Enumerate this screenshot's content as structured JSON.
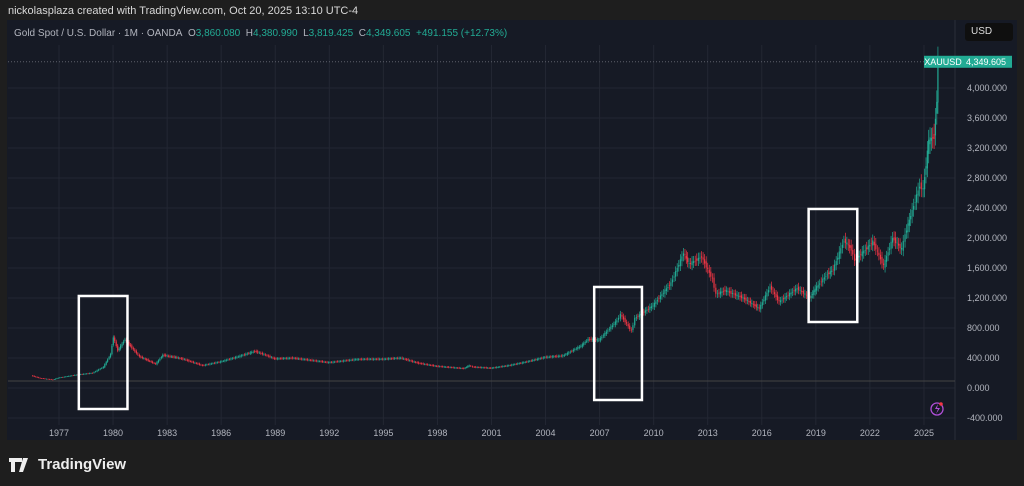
{
  "header": {
    "credit": "nickolasplaza created with TradingView.com, Oct 20, 2025 13:10 UTC-4",
    "symbol_desc": "Gold Spot / U.S. Dollar · 1M · OANDA",
    "o_label": "O",
    "o": "3,860.080",
    "h_label": "H",
    "h": "4,380.990",
    "l_label": "L",
    "l": "3,819.425",
    "c_label": "C",
    "c": "4,349.605",
    "change": "+491.155 (+12.73%)",
    "currency": "USD"
  },
  "branding": {
    "logo_text": "TradingView"
  },
  "colors": {
    "up": "#22ab94",
    "down": "#f23645",
    "background": "#161a25",
    "accent": "#22ab94"
  },
  "chart_data": {
    "type": "candlestick",
    "title": "Gold Spot / U.S. Dollar",
    "interval": "1M",
    "ylim": [
      -400,
      4400
    ],
    "xlim": [
      1974.8,
      2027.2
    ],
    "yticks": [
      "-400.000",
      "0.000",
      "400.000",
      "800.000",
      "1,200.000",
      "1,600.000",
      "2,000.000",
      "2,400.000",
      "2,800.000",
      "3,200.000",
      "3,600.000",
      "4,000.000"
    ],
    "ytick_values": [
      -400,
      0,
      400,
      800,
      1200,
      1600,
      2000,
      2400,
      2800,
      3200,
      3600,
      4000
    ],
    "xticks": [
      "1977",
      "1980",
      "1983",
      "1986",
      "1989",
      "1992",
      "1995",
      "1998",
      "2001",
      "2004",
      "2007",
      "2010",
      "2013",
      "2016",
      "2019",
      "2022",
      "2025"
    ],
    "last_price_label": "XAUUSD",
    "last_price": "4,349.605",
    "last_value": 4349.605,
    "grid": true,
    "closes": [
      [
        1975.5,
        165
      ],
      [
        1976,
        130
      ],
      [
        1976.7,
        110
      ],
      [
        1977,
        135
      ],
      [
        1978,
        175
      ],
      [
        1978.9,
        200
      ],
      [
        1979.5,
        280
      ],
      [
        1979.9,
        450
      ],
      [
        1980.05,
        680
      ],
      [
        1980.3,
        500
      ],
      [
        1980.7,
        650
      ],
      [
        1981,
        560
      ],
      [
        1981.5,
        420
      ],
      [
        1982.4,
        320
      ],
      [
        1982.8,
        440
      ],
      [
        1983.2,
        420
      ],
      [
        1983.5,
        410
      ],
      [
        1984,
        380
      ],
      [
        1985,
        300
      ],
      [
        1986,
        350
      ],
      [
        1987,
        420
      ],
      [
        1987.9,
        490
      ],
      [
        1988.5,
        440
      ],
      [
        1989,
        390
      ],
      [
        1990,
        400
      ],
      [
        1991,
        370
      ],
      [
        1992,
        340
      ],
      [
        1993.5,
        380
      ],
      [
        1994,
        385
      ],
      [
        1995,
        385
      ],
      [
        1996,
        400
      ],
      [
        1997,
        330
      ],
      [
        1998,
        290
      ],
      [
        1999.5,
        260
      ],
      [
        1999.8,
        300
      ],
      [
        2000,
        280
      ],
      [
        2001,
        265
      ],
      [
        2002,
        300
      ],
      [
        2003,
        350
      ],
      [
        2004,
        410
      ],
      [
        2005,
        430
      ],
      [
        2006,
        560
      ],
      [
        2006.4,
        650
      ],
      [
        2007,
        640
      ],
      [
        2008,
        900
      ],
      [
        2008.2,
        980
      ],
      [
        2008.8,
        760
      ],
      [
        2009,
        930
      ],
      [
        2010,
        1100
      ],
      [
        2011,
        1400
      ],
      [
        2011.7,
        1800
      ],
      [
        2012,
        1650
      ],
      [
        2012.7,
        1750
      ],
      [
        2013.3,
        1450
      ],
      [
        2013.5,
        1250
      ],
      [
        2014,
        1300
      ],
      [
        2015,
        1200
      ],
      [
        2015.9,
        1060
      ],
      [
        2016.5,
        1350
      ],
      [
        2017,
        1150
      ],
      [
        2018,
        1330
      ],
      [
        2018.7,
        1200
      ],
      [
        2019,
        1320
      ],
      [
        2019.6,
        1500
      ],
      [
        2020,
        1580
      ],
      [
        2020.6,
        1970
      ],
      [
        2021,
        1850
      ],
      [
        2021.2,
        1700
      ],
      [
        2022.2,
        1950
      ],
      [
        2022.8,
        1630
      ],
      [
        2023.3,
        2000
      ],
      [
        2023.8,
        1850
      ],
      [
        2024,
        2050
      ],
      [
        2024.3,
        2300
      ],
      [
        2024.8,
        2700
      ],
      [
        2025,
        2650
      ],
      [
        2025.3,
        3300
      ],
      [
        2025.6,
        3350
      ],
      [
        2025.75,
        3850
      ],
      [
        2025.8,
        4350
      ]
    ],
    "annotations": [
      {
        "type": "rectangle",
        "x": [
          1978.1,
          1980.8
        ],
        "y": [
          -280,
          1227
        ]
      },
      {
        "type": "rectangle",
        "x": [
          2006.7,
          2009.35
        ],
        "y": [
          -160,
          1347
        ]
      },
      {
        "type": "rectangle",
        "x": [
          2018.6,
          2021.3
        ],
        "y": [
          880,
          2387
        ]
      }
    ]
  }
}
